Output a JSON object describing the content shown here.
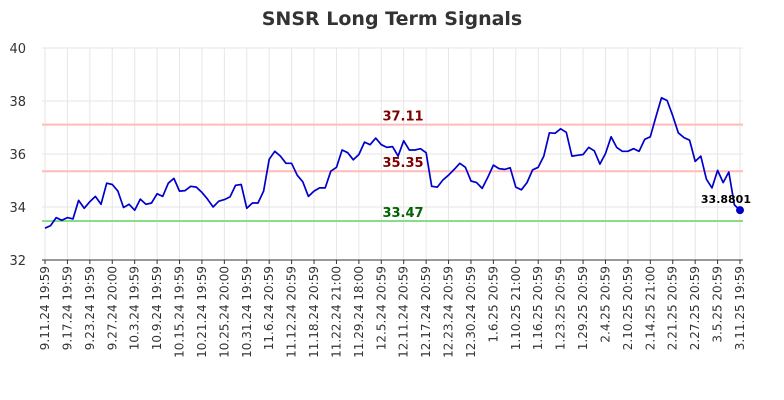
{
  "chart_data": {
    "type": "line",
    "title": "SNSR Long Term Signals",
    "xlabel": "",
    "ylabel": "",
    "ylim": [
      32,
      40
    ],
    "yticks": [
      "32",
      "34",
      "36",
      "38",
      "40"
    ],
    "grid": true,
    "legend": "none",
    "x_tick_labels": [
      "9.11.24 19:59",
      "9.17.24 19:59",
      "9.23.24 19:59",
      "9.27.24 20:00",
      "10.3.24 19:59",
      "10.9.24 19:59",
      "10.15.24 19:59",
      "10.21.24 19:59",
      "10.25.24 20:00",
      "10.31.24 19:59",
      "11.6.24 20:59",
      "11.12.24 20:59",
      "11.18.24 20:59",
      "11.22.24 21:00",
      "11.29.24 18:00",
      "12.5.24 20:59",
      "12.11.24 20:59",
      "12.17.24 20:59",
      "12.23.24 20:59",
      "12.30.24 20:59",
      "1.6.25 20:59",
      "1.10.25 21:00",
      "1.16.25 20:59",
      "1.23.25 20:59",
      "1.29.25 20:59",
      "2.4.25 20:59",
      "2.10.25 20:59",
      "2.14.25 21:00",
      "2.21.25 20:59",
      "2.27.25 20:59",
      "3.5.25 20:59",
      "3.11.25 19:59"
    ],
    "series": [
      {
        "color": "#0000cc",
        "values": [
          33.2,
          33.3,
          33.6,
          33.5,
          33.6,
          33.55,
          34.25,
          33.95,
          34.2,
          34.4,
          34.1,
          34.9,
          34.85,
          34.6,
          33.98,
          34.1,
          33.88,
          34.3,
          34.1,
          34.15,
          34.5,
          34.4,
          34.9,
          35.08,
          34.6,
          34.62,
          34.78,
          34.75,
          34.55,
          34.3,
          34.0,
          34.22,
          34.28,
          34.38,
          34.82,
          34.85,
          33.95,
          34.15,
          34.15,
          34.6,
          35.8,
          36.1,
          35.92,
          35.65,
          35.65,
          35.2,
          34.95,
          34.4,
          34.6,
          34.72,
          34.72,
          35.35,
          35.5,
          36.15,
          36.05,
          35.78,
          35.98,
          36.45,
          36.35,
          36.6,
          36.35,
          36.25,
          36.28,
          35.92,
          36.5,
          36.15,
          36.15,
          36.2,
          36.05,
          34.78,
          34.75,
          35.02,
          35.2,
          35.42,
          35.65,
          35.5,
          34.98,
          34.92,
          34.7,
          35.12,
          35.58,
          35.45,
          35.42,
          35.48,
          34.75,
          34.65,
          34.92,
          35.4,
          35.5,
          35.92,
          36.8,
          36.78,
          36.95,
          36.82,
          35.92,
          35.95,
          35.98,
          36.25,
          36.12,
          35.62,
          36.02,
          36.65,
          36.25,
          36.1,
          36.1,
          36.2,
          36.1,
          36.55,
          36.65,
          37.4,
          38.12,
          38.02,
          37.45,
          36.8,
          36.62,
          36.52,
          35.72,
          35.92,
          35.05,
          34.72,
          35.38,
          34.92,
          35.32,
          34.08,
          33.88
        ]
      }
    ],
    "hlines": [
      {
        "value": 37.11,
        "label": "37.11",
        "line_color": "#ffbbbb",
        "label_color": "#800000"
      },
      {
        "value": 35.35,
        "label": "35.35",
        "line_color": "#ffbbbb",
        "label_color": "#800000"
      },
      {
        "value": 33.47,
        "label": "33.47",
        "line_color": "#88dd88",
        "label_color": "#006400"
      }
    ],
    "last_point": {
      "value": 33.8801,
      "label": "33.8801",
      "color": "#0000cc"
    }
  }
}
